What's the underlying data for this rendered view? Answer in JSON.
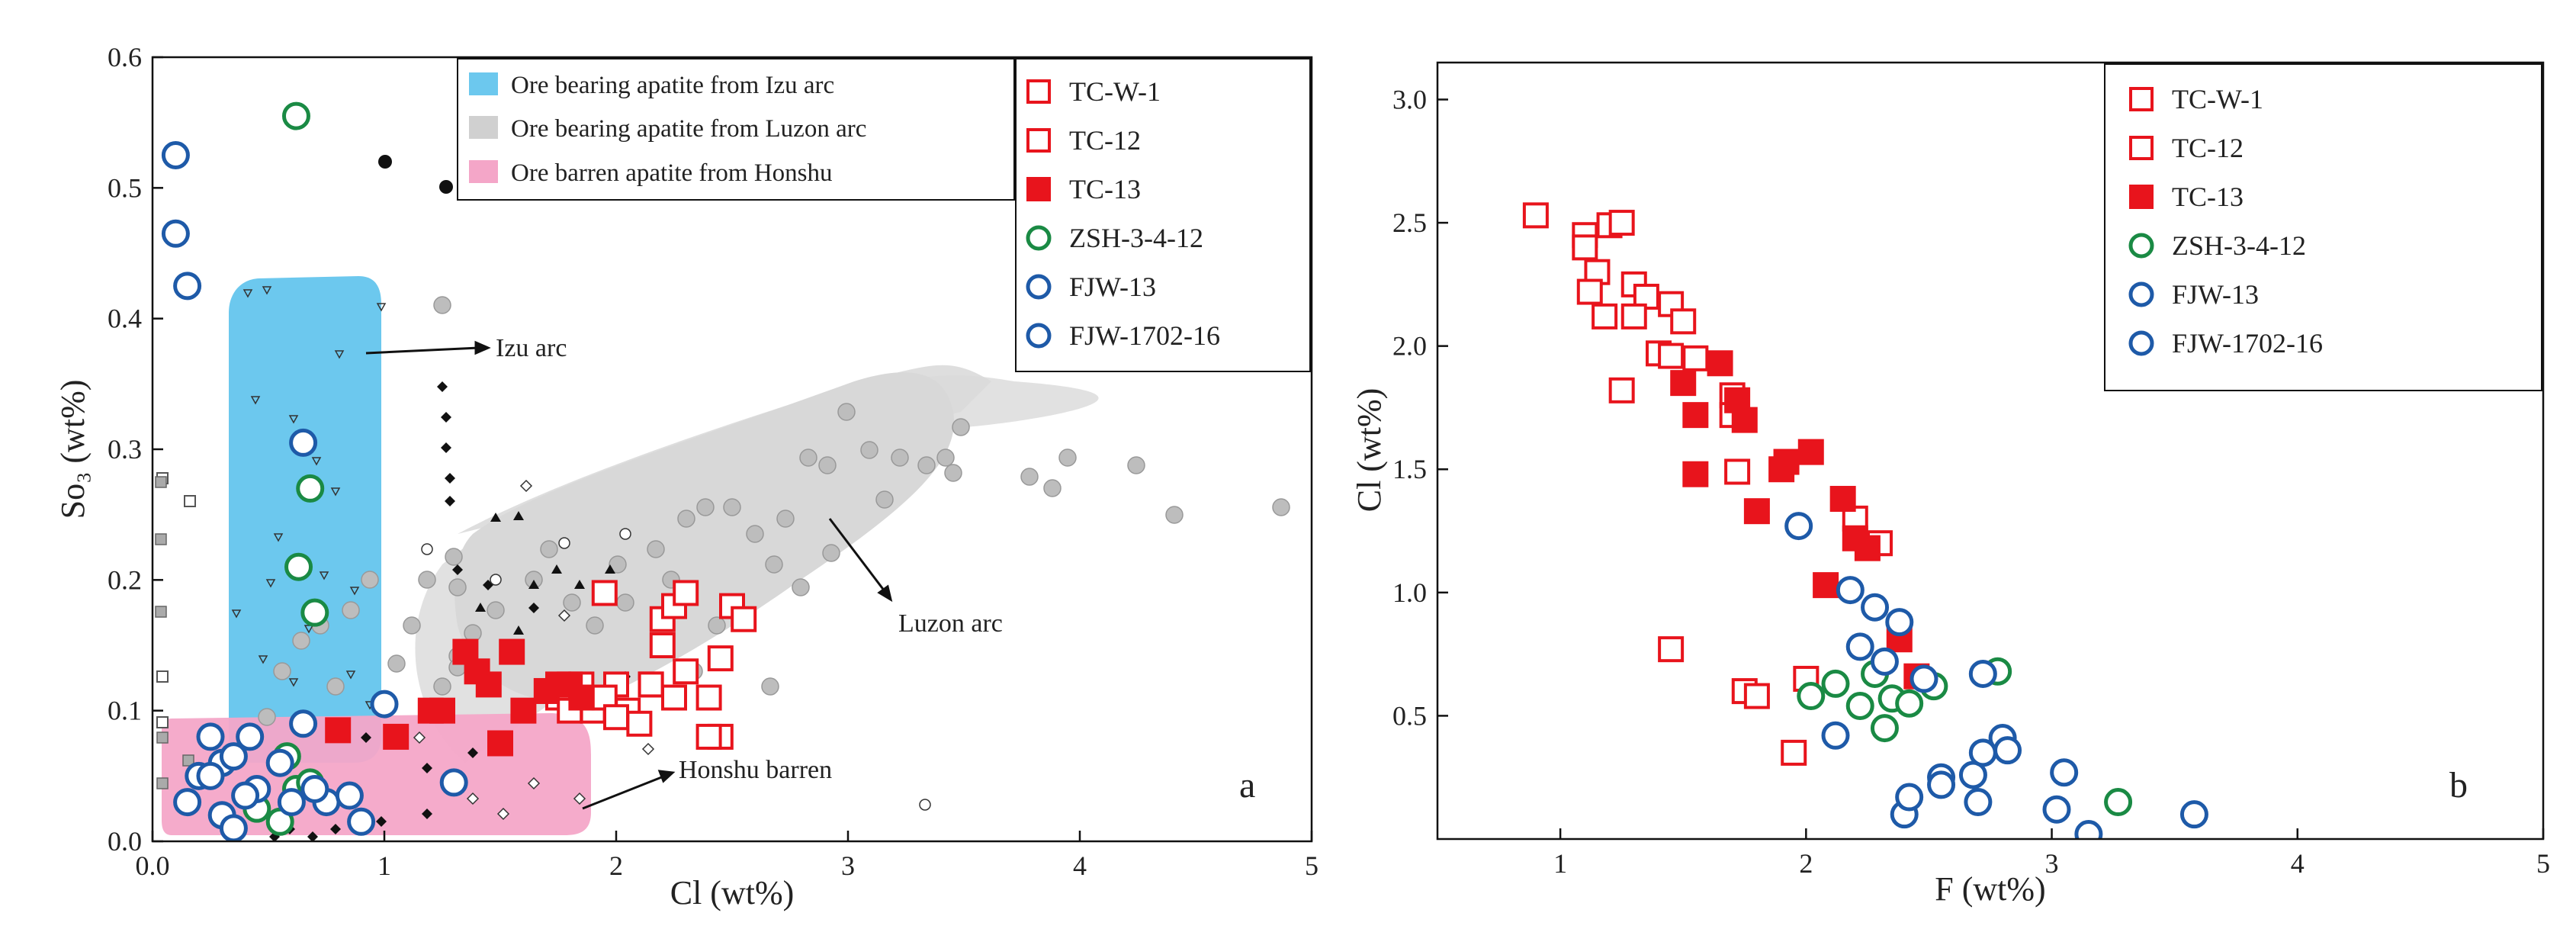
{
  "chart_data": [
    {
      "panel": "a",
      "type": "scatter",
      "xlabel": "Cl (wt%)",
      "ylabel": "So₃ (wt%)",
      "xlim": [
        0,
        5
      ],
      "ylim": [
        0,
        0.6
      ],
      "xticks": [
        "0.0",
        "1",
        "2",
        "3",
        "4",
        "5"
      ],
      "yticks": [
        "0.0",
        "0.1",
        "0.2",
        "0.3",
        "0.4",
        "0.5",
        "0.6"
      ],
      "fields": [
        {
          "name": "Ore bearing apatite from Izu arc",
          "color": "#6cc8ee"
        },
        {
          "name": "Ore bearing apatite from Luzon arc",
          "color": "#d0d0d0"
        },
        {
          "name": "Ore barren apatite from Honshu",
          "color": "#f4a6c8"
        }
      ],
      "annotations": [
        "Izu arc",
        "Luzon arc",
        "Honshu barren"
      ],
      "series": [
        {
          "name": "TC-W-1",
          "marker": "square-open",
          "color": "#e8141c",
          "x": [
            1.95,
            2.05,
            2.15,
            2.2,
            2.25,
            2.3,
            2.4,
            2.45,
            2.5,
            2.55,
            2.3,
            2.2,
            2.1,
            2.0,
            2.45
          ],
          "y": [
            0.19,
            0.1,
            0.12,
            0.17,
            0.18,
            0.19,
            0.11,
            0.14,
            0.18,
            0.17,
            0.13,
            0.15,
            0.09,
            0.12,
            0.08
          ]
        },
        {
          "name": "TC-12",
          "marker": "square-open",
          "color": "#e8141c",
          "x": [
            1.75,
            1.85,
            1.9,
            1.95,
            2.0,
            2.25,
            2.4,
            1.8,
            2.15
          ],
          "y": [
            0.11,
            0.12,
            0.1,
            0.11,
            0.095,
            0.11,
            0.08,
            0.1,
            0.12
          ]
        },
        {
          "name": "TC-13",
          "marker": "square-filled",
          "color": "#e8141c",
          "x": [
            0.8,
            1.05,
            1.2,
            1.25,
            1.35,
            1.4,
            1.45,
            1.5,
            1.55,
            1.6,
            1.7,
            1.75,
            1.8,
            1.85
          ],
          "y": [
            0.085,
            0.08,
            0.1,
            0.1,
            0.145,
            0.13,
            0.12,
            0.075,
            0.145,
            0.1,
            0.115,
            0.12,
            0.12,
            0.11
          ]
        },
        {
          "name": "ZSH-3-4-12",
          "marker": "circle-open",
          "color": "#1a8a44",
          "x": [
            0.62,
            0.63,
            0.68,
            0.7,
            0.58,
            0.45,
            0.55,
            0.62,
            0.68
          ],
          "y": [
            0.555,
            0.21,
            0.27,
            0.175,
            0.065,
            0.025,
            0.015,
            0.04,
            0.045
          ]
        },
        {
          "name": "FJW-13",
          "marker": "circle-open",
          "color": "#1e5aa8",
          "x": [
            0.1,
            0.1,
            0.15,
            0.65,
            0.65,
            0.25,
            0.3,
            0.35,
            0.42,
            0.55,
            0.75,
            0.85
          ],
          "y": [
            0.525,
            0.465,
            0.425,
            0.305,
            0.09,
            0.08,
            0.06,
            0.065,
            0.08,
            0.06,
            0.03,
            0.035
          ]
        },
        {
          "name": "FJW-1702-16",
          "marker": "circle-open",
          "color": "#1e5aa8",
          "x": [
            0.15,
            0.2,
            0.3,
            0.35,
            0.45,
            0.6,
            0.7,
            0.9,
            1.0,
            1.3,
            0.25,
            0.4
          ],
          "y": [
            0.03,
            0.05,
            0.02,
            0.01,
            0.04,
            0.03,
            0.04,
            0.015,
            0.105,
            0.045,
            0.05,
            0.035
          ]
        }
      ],
      "panel_label": "a"
    },
    {
      "panel": "b",
      "type": "scatter",
      "xlabel": "F (wt%)",
      "ylabel": "Cl (wt%)",
      "xlim": [
        0.5,
        5
      ],
      "ylim": [
        0,
        3.15
      ],
      "xticks": [
        "1",
        "2",
        "3",
        "4",
        "5"
      ],
      "yticks": [
        "0.5",
        "1.0",
        "1.5",
        "2.0",
        "2.5",
        "3.0"
      ],
      "series": [
        {
          "name": "TC-W-1",
          "marker": "square-open",
          "color": "#e8141c",
          "x": [
            0.9,
            1.1,
            1.15,
            1.2,
            1.25,
            1.3,
            1.35,
            1.45,
            1.5,
            1.55,
            1.7,
            1.45,
            1.75,
            1.8
          ],
          "y": [
            2.53,
            2.45,
            2.3,
            2.49,
            2.5,
            2.25,
            2.2,
            2.17,
            2.1,
            1.95,
            1.8,
            0.77,
            0.6,
            0.58
          ]
        },
        {
          "name": "TC-12",
          "marker": "square-open",
          "color": "#e8141c",
          "x": [
            1.1,
            1.12,
            1.18,
            1.25,
            1.3,
            1.4,
            1.45,
            1.7,
            1.72,
            1.95,
            2.0,
            2.2,
            2.3
          ],
          "y": [
            2.4,
            2.22,
            2.12,
            1.82,
            2.12,
            1.97,
            1.96,
            1.72,
            1.49,
            0.35,
            0.65,
            1.3,
            1.2
          ]
        },
        {
          "name": "TC-13",
          "marker": "square-filled",
          "color": "#e8141c",
          "x": [
            1.55,
            1.55,
            1.5,
            1.65,
            1.72,
            1.75,
            1.8,
            1.9,
            1.92,
            2.02,
            2.08,
            2.15,
            2.2,
            2.25,
            2.38,
            2.45
          ],
          "y": [
            1.72,
            1.48,
            1.85,
            1.93,
            1.78,
            1.7,
            1.33,
            1.5,
            1.53,
            1.57,
            1.03,
            1.38,
            1.22,
            1.18,
            0.81,
            0.66
          ]
        },
        {
          "name": "ZSH-3-4-12",
          "marker": "circle-open",
          "color": "#1a8a44",
          "x": [
            2.02,
            2.12,
            2.22,
            2.28,
            2.32,
            2.35,
            2.42,
            2.52,
            2.78,
            3.27
          ],
          "y": [
            0.58,
            0.63,
            0.54,
            0.67,
            0.45,
            0.57,
            0.55,
            0.62,
            0.68,
            0.15
          ]
        },
        {
          "name": "FJW-13",
          "marker": "circle-open",
          "color": "#1e5aa8",
          "x": [
            1.97,
            2.18,
            2.22,
            2.28,
            2.32,
            2.38,
            2.48,
            2.55,
            2.72,
            2.8
          ],
          "y": [
            1.27,
            1.01,
            0.78,
            0.94,
            0.72,
            0.88,
            0.65,
            0.25,
            0.67,
            0.41
          ]
        },
        {
          "name": "FJW-1702-16",
          "marker": "circle-open",
          "color": "#1e5aa8",
          "x": [
            2.12,
            2.4,
            2.42,
            2.55,
            2.68,
            2.72,
            2.82,
            3.02,
            3.05,
            3.15,
            3.58,
            2.7
          ],
          "y": [
            0.42,
            0.1,
            0.17,
            0.22,
            0.26,
            0.35,
            0.36,
            0.12,
            0.27,
            0.02,
            0.1,
            0.15
          ]
        }
      ],
      "panel_label": "b"
    }
  ],
  "colors": {
    "tc_red": "#e8141c",
    "zsh_green": "#1a8a44",
    "fjw_blue": "#1e5aa8",
    "izu_field": "#6cc8ee",
    "luzon_field": "#d0d0d0",
    "honshu_field": "#f4a6c8"
  }
}
